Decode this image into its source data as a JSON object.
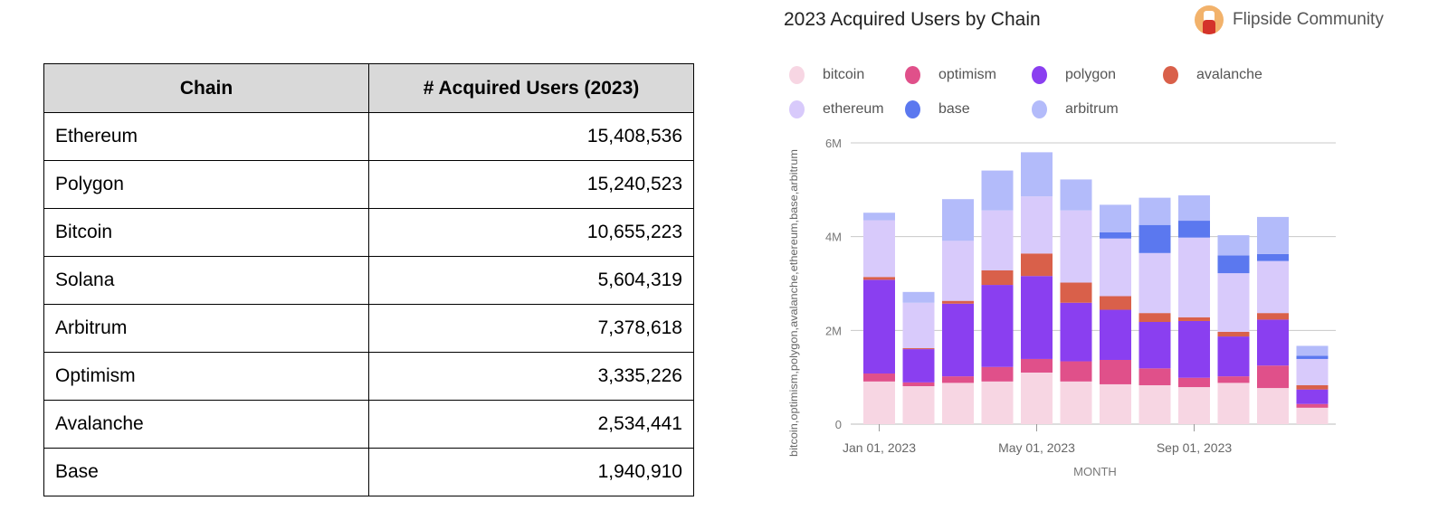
{
  "table": {
    "headers": [
      "Chain",
      "# Acquired Users (2023)"
    ],
    "rows": [
      [
        "Ethereum",
        "15,408,536"
      ],
      [
        "Polygon",
        "15,240,523"
      ],
      [
        "Bitcoin",
        "10,655,223"
      ],
      [
        "Solana",
        "5,604,319"
      ],
      [
        "Arbitrum",
        "7,378,618"
      ],
      [
        "Optimism",
        "3,335,226"
      ],
      [
        "Avalanche",
        "2,534,441"
      ],
      [
        "Base",
        "1,940,910"
      ]
    ]
  },
  "brand": {
    "label": "Flipside Community",
    "icon": "flipside-avatar-icon"
  },
  "chart_data": {
    "type": "bar",
    "stacked": true,
    "title": "2023 Acquired Users by Chain",
    "xlabel": "MONTH",
    "ylabel": "bitcoin,optimism,polygon,avalanche,ethereum,base,arbitrum",
    "ylim": [
      0,
      6000000
    ],
    "yticks": [
      {
        "v": 0,
        "label": "0"
      },
      {
        "v": 2000000,
        "label": "2M"
      },
      {
        "v": 4000000,
        "label": "4M"
      },
      {
        "v": 6000000,
        "label": "6M"
      }
    ],
    "xticks": [
      {
        "i": 0,
        "label": "Jan 01, 2023"
      },
      {
        "i": 4,
        "label": "May 01, 2023"
      },
      {
        "i": 8,
        "label": "Sep 01, 2023"
      }
    ],
    "grid": true,
    "legend_position": "top",
    "categories": [
      "2023-01",
      "2023-02",
      "2023-03",
      "2023-04",
      "2023-05",
      "2023-06",
      "2023-07",
      "2023-08",
      "2023-09",
      "2023-10",
      "2023-11",
      "2023-12"
    ],
    "series": [
      {
        "name": "bitcoin",
        "color": "#f7d6e3",
        "values": [
          910000,
          810000,
          880000,
          910000,
          1100000,
          910000,
          850000,
          830000,
          790000,
          880000,
          770000,
          350000
        ]
      },
      {
        "name": "optimism",
        "color": "#e0508a",
        "values": [
          170000,
          80000,
          140000,
          310000,
          290000,
          430000,
          520000,
          360000,
          200000,
          140000,
          480000,
          80000
        ]
      },
      {
        "name": "polygon",
        "color": "#8a3ff0",
        "values": [
          2000000,
          710000,
          1550000,
          1750000,
          1770000,
          1250000,
          1070000,
          990000,
          1210000,
          850000,
          980000,
          310000
        ]
      },
      {
        "name": "avalanche",
        "color": "#d9604a",
        "values": [
          60000,
          20000,
          60000,
          310000,
          480000,
          430000,
          290000,
          190000,
          80000,
          100000,
          140000,
          90000
        ]
      },
      {
        "name": "ethereum",
        "color": "#d8cafb",
        "values": [
          1210000,
          970000,
          1280000,
          1280000,
          1220000,
          1540000,
          1230000,
          1280000,
          1700000,
          1250000,
          1110000,
          560000
        ]
      },
      {
        "name": "base",
        "color": "#5b78ef",
        "values": [
          0,
          0,
          0,
          0,
          0,
          0,
          130000,
          600000,
          360000,
          380000,
          150000,
          70000
        ]
      },
      {
        "name": "arbitrum",
        "color": "#b3bbfa",
        "values": [
          160000,
          230000,
          890000,
          850000,
          940000,
          660000,
          590000,
          580000,
          540000,
          430000,
          790000,
          210000
        ]
      }
    ]
  }
}
